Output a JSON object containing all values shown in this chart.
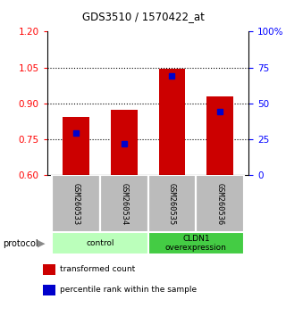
{
  "title": "GDS3510 / 1570422_at",
  "samples": [
    "GSM260533",
    "GSM260534",
    "GSM260535",
    "GSM260536"
  ],
  "bar_values": [
    0.845,
    0.875,
    1.045,
    0.93
  ],
  "bar_bottom": 0.6,
  "percentile_values": [
    0.775,
    0.733,
    1.015,
    0.865
  ],
  "bar_color": "#cc0000",
  "percentile_color": "#0000cc",
  "ylim_left": [
    0.6,
    1.2
  ],
  "yticks_left": [
    0.6,
    0.75,
    0.9,
    1.05,
    1.2
  ],
  "yticks_right_vals": [
    0.0,
    0.25,
    0.5,
    0.75,
    1.0
  ],
  "yticks_right_labels": [
    "0",
    "25",
    "50",
    "75",
    "100%"
  ],
  "groups": [
    {
      "label": "control",
      "indices": [
        0,
        1
      ],
      "color": "#bbffbb"
    },
    {
      "label": "CLDN1\noverexpression",
      "indices": [
        2,
        3
      ],
      "color": "#44cc44"
    }
  ],
  "protocol_label": "protocol",
  "legend_items": [
    {
      "label": "transformed count",
      "color": "#cc0000"
    },
    {
      "label": "percentile rank within the sample",
      "color": "#0000cc"
    }
  ],
  "sample_box_color": "#bbbbbb",
  "grid_yticks": [
    0.75,
    0.9,
    1.05
  ]
}
